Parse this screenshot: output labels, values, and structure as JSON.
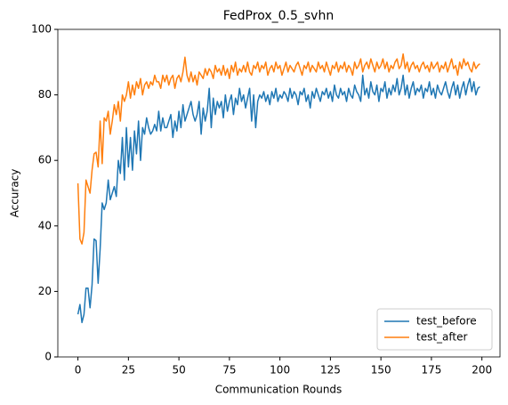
{
  "chart_data": {
    "type": "line",
    "title": "FedProx_0.5_svhn",
    "xlabel": "Communication Rounds",
    "ylabel": "Accuracy",
    "x": [
      0,
      1,
      2,
      3,
      4,
      5,
      6,
      7,
      8,
      9,
      10,
      11,
      12,
      13,
      14,
      15,
      16,
      17,
      18,
      19,
      20,
      21,
      22,
      23,
      24,
      25,
      26,
      27,
      28,
      29,
      30,
      31,
      32,
      33,
      34,
      35,
      36,
      37,
      38,
      39,
      40,
      41,
      42,
      43,
      44,
      45,
      46,
      47,
      48,
      49,
      50,
      51,
      52,
      53,
      54,
      55,
      56,
      57,
      58,
      59,
      60,
      61,
      62,
      63,
      64,
      65,
      66,
      67,
      68,
      69,
      70,
      71,
      72,
      73,
      74,
      75,
      76,
      77,
      78,
      79,
      80,
      81,
      82,
      83,
      84,
      85,
      86,
      87,
      88,
      89,
      90,
      91,
      92,
      93,
      94,
      95,
      96,
      97,
      98,
      99,
      100,
      101,
      102,
      103,
      104,
      105,
      106,
      107,
      108,
      109,
      110,
      111,
      112,
      113,
      114,
      115,
      116,
      117,
      118,
      119,
      120,
      121,
      122,
      123,
      124,
      125,
      126,
      127,
      128,
      129,
      130,
      131,
      132,
      133,
      134,
      135,
      136,
      137,
      138,
      139,
      140,
      141,
      142,
      143,
      144,
      145,
      146,
      147,
      148,
      149,
      150,
      151,
      152,
      153,
      154,
      155,
      156,
      157,
      158,
      159,
      160,
      161,
      162,
      163,
      164,
      165,
      166,
      167,
      168,
      169,
      170,
      171,
      172,
      173,
      174,
      175,
      176,
      177,
      178,
      179,
      180,
      181,
      182,
      183,
      184,
      185,
      186,
      187,
      188,
      189,
      190,
      191,
      192,
      193,
      194,
      195,
      196,
      197,
      198,
      199
    ],
    "series": [
      {
        "name": "test_before",
        "color": "#1f77b4",
        "values": [
          13,
          16,
          10.5,
          13,
          21,
          21,
          15,
          22,
          36,
          35.5,
          22.5,
          33,
          47,
          45,
          47,
          54,
          48,
          50,
          52,
          49,
          60,
          56,
          67,
          54,
          70,
          58,
          67,
          57,
          69,
          62,
          72,
          60,
          70,
          68,
          73,
          70,
          68,
          69,
          71,
          69,
          75,
          69,
          73,
          70,
          70,
          72,
          74,
          67,
          72,
          69,
          75,
          70,
          77,
          72,
          74,
          76,
          78,
          74,
          72,
          74,
          78,
          68,
          76,
          72,
          75,
          82,
          70,
          79,
          74,
          78,
          76,
          78,
          73,
          80,
          75,
          78,
          80,
          74,
          79,
          77,
          82,
          78,
          80,
          76,
          79,
          82,
          72,
          80,
          70,
          78,
          80,
          79,
          81,
          78,
          80,
          77,
          81,
          79,
          82,
          78,
          80,
          79,
          81,
          80,
          78,
          82,
          79,
          81,
          80,
          77,
          81,
          80,
          82,
          78,
          80,
          76,
          81,
          79,
          82,
          80,
          78,
          81,
          80,
          82,
          79,
          81,
          78,
          83,
          80,
          79,
          82,
          80,
          81,
          78,
          82,
          80,
          79,
          83,
          81,
          80,
          78,
          86,
          80,
          82,
          79,
          84,
          81,
          80,
          83,
          78,
          82,
          81,
          84,
          79,
          82,
          80,
          83,
          81,
          85,
          80,
          82,
          86,
          80,
          83,
          79,
          82,
          84,
          80,
          82,
          81,
          83,
          79,
          82,
          81,
          84,
          80,
          82,
          79,
          83,
          81,
          80,
          82,
          84,
          81,
          79,
          82,
          84,
          80,
          83,
          79,
          82,
          84,
          80,
          83,
          85,
          81,
          84,
          80,
          82,
          82.5
        ]
      },
      {
        "name": "test_after",
        "color": "#ff7f0e",
        "values": [
          53,
          36,
          34.5,
          38,
          54,
          52,
          50,
          57,
          62,
          62.5,
          58,
          72,
          59,
          73,
          72,
          75,
          68,
          72,
          77,
          74,
          78,
          72,
          80,
          78,
          80,
          84,
          79,
          83,
          80,
          84,
          82,
          85,
          80,
          83,
          84,
          82,
          84,
          83,
          86,
          84,
          84,
          82,
          86,
          84,
          86,
          83,
          85,
          86,
          82,
          85,
          86,
          84,
          87,
          91.5,
          86,
          84,
          87,
          84,
          86,
          83,
          87,
          86,
          85,
          88,
          86,
          88,
          87,
          85,
          89,
          87,
          88,
          86,
          89,
          86,
          88,
          85,
          89,
          87,
          90,
          86,
          88,
          87,
          89,
          87,
          90,
          87,
          86,
          89,
          88,
          90,
          87,
          89,
          88,
          90,
          86,
          88,
          89,
          87,
          90,
          88,
          89,
          86,
          88,
          90,
          87,
          89,
          88,
          87,
          89,
          90,
          88,
          86,
          89,
          88,
          90,
          87,
          89,
          88,
          87,
          90,
          88,
          89,
          87,
          90,
          88,
          86,
          89,
          88,
          90,
          87,
          89,
          88,
          90,
          87,
          89,
          88,
          86,
          90,
          88,
          89,
          91,
          87,
          89,
          90,
          88,
          91,
          89,
          87,
          90,
          88,
          89,
          91,
          88,
          90,
          87,
          89,
          88,
          90,
          91,
          88,
          89,
          92.5,
          88,
          90,
          87,
          89,
          90,
          88,
          89,
          87,
          89,
          90,
          88,
          89,
          87,
          90,
          88,
          89,
          90,
          87,
          89,
          88,
          90,
          87,
          89,
          91,
          88,
          89,
          86,
          90,
          88,
          91,
          89,
          90,
          88,
          87,
          90,
          88,
          89,
          89.5
        ]
      }
    ],
    "xlim": [
      -9.95,
      208.95
    ],
    "xticks": [
      0,
      25,
      50,
      75,
      100,
      125,
      150,
      175,
      200
    ],
    "ylim": [
      0,
      100
    ],
    "yticks": [
      0,
      20,
      40,
      60,
      80,
      100
    ],
    "legend": "lower right",
    "grid": false
  }
}
